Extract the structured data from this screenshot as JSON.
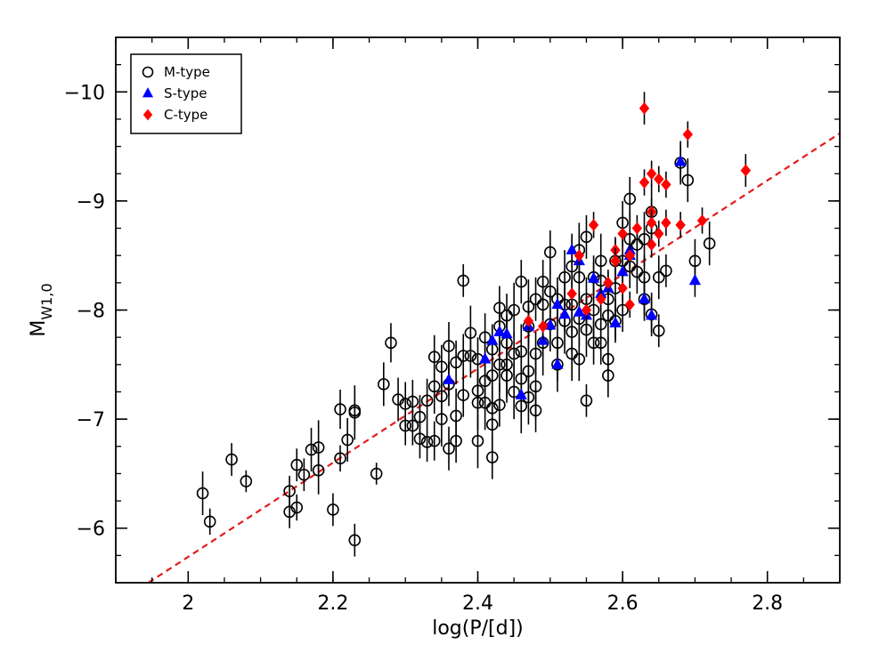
{
  "chart_data": {
    "type": "scatter",
    "xlabel": "log(P/[d])",
    "ylabel": "M",
    "ylabel_sub": "W1,0",
    "xlim": [
      1.9,
      2.9
    ],
    "ylim": [
      -5.5,
      -10.5
    ],
    "x_ticks": [
      2.0,
      2.2,
      2.4,
      2.6,
      2.8
    ],
    "x_tick_labels": [
      "2",
      "2.2",
      "2.4",
      "2.6",
      "2.8"
    ],
    "y_ticks": [
      -6,
      -7,
      -8,
      -9,
      -10
    ],
    "y_tick_labels": [
      "−6",
      "−7",
      "−8",
      "−9",
      "−10"
    ],
    "legend_position": "top-left",
    "fit_line": {
      "style": "dashed",
      "color": "#e41a1c",
      "points": [
        [
          1.945,
          -5.5
        ],
        [
          2.9,
          -9.62
        ]
      ]
    },
    "series": [
      {
        "name": "M-type",
        "marker": "open-circle",
        "color": "#000000",
        "points": [
          [
            2.02,
            -6.32,
            0.2
          ],
          [
            2.03,
            -6.06,
            0.12
          ],
          [
            2.06,
            -6.63,
            0.15
          ],
          [
            2.08,
            -6.43,
            0.1
          ],
          [
            2.14,
            -6.34,
            0.14
          ],
          [
            2.14,
            -6.15,
            0.15
          ],
          [
            2.15,
            -6.19,
            0.12
          ],
          [
            2.15,
            -6.58,
            0.15
          ],
          [
            2.16,
            -6.49,
            0.15
          ],
          [
            2.17,
            -6.72,
            0.2
          ],
          [
            2.18,
            -6.53,
            0.22
          ],
          [
            2.18,
            -6.74,
            0.25
          ],
          [
            2.2,
            -6.17,
            0.15
          ],
          [
            2.21,
            -6.64,
            0.12
          ],
          [
            2.21,
            -7.09,
            0.18
          ],
          [
            2.22,
            -6.81,
            0.2
          ],
          [
            2.23,
            -5.89,
            0.15
          ],
          [
            2.23,
            -7.08,
            0.18
          ],
          [
            2.23,
            -7.06,
            0.25
          ],
          [
            2.26,
            -6.5,
            0.1
          ],
          [
            2.27,
            -7.32,
            0.2
          ],
          [
            2.28,
            -7.7,
            0.18
          ],
          [
            2.29,
            -7.18,
            0.2
          ],
          [
            2.3,
            -6.94,
            0.18
          ],
          [
            2.3,
            -7.14,
            0.2
          ],
          [
            2.31,
            -6.94,
            0.18
          ],
          [
            2.31,
            -7.16,
            0.2
          ],
          [
            2.32,
            -6.82,
            0.18
          ],
          [
            2.32,
            -7.02,
            0.2
          ],
          [
            2.33,
            -7.17,
            0.2
          ],
          [
            2.33,
            -6.79,
            0.18
          ],
          [
            2.34,
            -6.8,
            0.18
          ],
          [
            2.34,
            -7.3,
            0.25
          ],
          [
            2.34,
            -7.57,
            0.2
          ],
          [
            2.35,
            -7.0,
            0.25
          ],
          [
            2.35,
            -7.21,
            0.2
          ],
          [
            2.35,
            -7.48,
            0.2
          ],
          [
            2.36,
            -6.73,
            0.2
          ],
          [
            2.36,
            -7.32,
            0.2
          ],
          [
            2.36,
            -7.67,
            0.22
          ],
          [
            2.37,
            -7.03,
            0.25
          ],
          [
            2.37,
            -7.52,
            0.2
          ],
          [
            2.37,
            -6.8,
            0.2
          ],
          [
            2.38,
            -7.22,
            0.2
          ],
          [
            2.38,
            -7.58,
            0.2
          ],
          [
            2.38,
            -8.27,
            0.15
          ],
          [
            2.39,
            -7.58,
            0.2
          ],
          [
            2.39,
            -7.79,
            0.25
          ],
          [
            2.4,
            -7.15,
            0.25
          ],
          [
            2.4,
            -7.26,
            0.2
          ],
          [
            2.4,
            -7.55,
            0.2
          ],
          [
            2.4,
            -6.8,
            0.25
          ],
          [
            2.41,
            -7.15,
            0.25
          ],
          [
            2.41,
            -7.35,
            0.2
          ],
          [
            2.41,
            -7.75,
            0.22
          ],
          [
            2.42,
            -6.95,
            0.25
          ],
          [
            2.42,
            -7.4,
            0.2
          ],
          [
            2.42,
            -7.64,
            0.2
          ],
          [
            2.42,
            -7.1,
            0.2
          ],
          [
            2.42,
            -6.65,
            0.2
          ],
          [
            2.43,
            -7.85,
            0.25
          ],
          [
            2.43,
            -8.02,
            0.2
          ],
          [
            2.43,
            -7.5,
            0.25
          ],
          [
            2.43,
            -7.13,
            0.2
          ],
          [
            2.44,
            -7.5,
            0.3
          ],
          [
            2.44,
            -7.95,
            0.2
          ],
          [
            2.44,
            -7.7,
            0.25
          ],
          [
            2.44,
            -7.4,
            0.25
          ],
          [
            2.45,
            -7.25,
            0.25
          ],
          [
            2.45,
            -7.6,
            0.2
          ],
          [
            2.45,
            -8.0,
            0.25
          ],
          [
            2.46,
            -7.37,
            0.2
          ],
          [
            2.46,
            -7.62,
            0.25
          ],
          [
            2.46,
            -8.26,
            0.2
          ],
          [
            2.46,
            -7.12,
            0.25
          ],
          [
            2.47,
            -7.44,
            0.3
          ],
          [
            2.47,
            -7.2,
            0.25
          ],
          [
            2.47,
            -7.85,
            0.2
          ],
          [
            2.47,
            -8.03,
            0.25
          ],
          [
            2.48,
            -7.08,
            0.2
          ],
          [
            2.48,
            -7.3,
            0.3
          ],
          [
            2.48,
            -7.6,
            0.2
          ],
          [
            2.48,
            -8.1,
            0.2
          ],
          [
            2.49,
            -7.7,
            0.3
          ],
          [
            2.49,
            -8.05,
            0.25
          ],
          [
            2.49,
            -8.26,
            0.2
          ],
          [
            2.5,
            -7.87,
            0.25
          ],
          [
            2.5,
            -8.17,
            0.2
          ],
          [
            2.5,
            -8.53,
            0.2
          ],
          [
            2.51,
            -7.7,
            0.25
          ],
          [
            2.51,
            -8.1,
            0.2
          ],
          [
            2.51,
            -7.5,
            0.25
          ],
          [
            2.52,
            -7.9,
            0.3
          ],
          [
            2.52,
            -8.3,
            0.25
          ],
          [
            2.52,
            -8.05,
            0.2
          ],
          [
            2.53,
            -7.6,
            0.25
          ],
          [
            2.53,
            -7.8,
            0.2
          ],
          [
            2.53,
            -8.05,
            0.25
          ],
          [
            2.53,
            -8.4,
            0.25
          ],
          [
            2.54,
            -7.92,
            0.25
          ],
          [
            2.54,
            -8.3,
            0.2
          ],
          [
            2.54,
            -8.55,
            0.25
          ],
          [
            2.54,
            -7.55,
            0.2
          ],
          [
            2.55,
            -7.17,
            0.15
          ],
          [
            2.55,
            -7.82,
            0.25
          ],
          [
            2.55,
            -8.1,
            0.2
          ],
          [
            2.55,
            -8.67,
            0.2
          ],
          [
            2.56,
            -7.7,
            0.2
          ],
          [
            2.56,
            -8.0,
            0.25
          ],
          [
            2.56,
            -8.3,
            0.2
          ],
          [
            2.57,
            -7.87,
            0.25
          ],
          [
            2.57,
            -8.27,
            0.2
          ],
          [
            2.57,
            -8.45,
            0.25
          ],
          [
            2.57,
            -7.7,
            0.2
          ],
          [
            2.58,
            -7.95,
            0.25
          ],
          [
            2.58,
            -8.1,
            0.2
          ],
          [
            2.58,
            -7.4,
            0.2
          ],
          [
            2.58,
            -7.55,
            0.2
          ],
          [
            2.59,
            -8.2,
            0.25
          ],
          [
            2.59,
            -7.9,
            0.2
          ],
          [
            2.59,
            -8.45,
            0.2
          ],
          [
            2.6,
            -8.45,
            0.2
          ],
          [
            2.6,
            -8.8,
            0.2
          ],
          [
            2.6,
            -8.0,
            0.2
          ],
          [
            2.61,
            -9.02,
            0.2
          ],
          [
            2.61,
            -8.4,
            0.2
          ],
          [
            2.61,
            -8.65,
            0.25
          ],
          [
            2.62,
            -8.35,
            0.2
          ],
          [
            2.62,
            -8.6,
            0.2
          ],
          [
            2.63,
            -8.1,
            0.2
          ],
          [
            2.63,
            -8.3,
            0.2
          ],
          [
            2.63,
            -8.65,
            0.25
          ],
          [
            2.64,
            -8.9,
            0.25
          ],
          [
            2.64,
            -8.75,
            0.2
          ],
          [
            2.64,
            -7.96,
            0.2
          ],
          [
            2.65,
            -8.3,
            0.2
          ],
          [
            2.65,
            -7.81,
            0.15
          ],
          [
            2.66,
            -8.36,
            0.15
          ],
          [
            2.68,
            -9.35,
            0.2
          ],
          [
            2.69,
            -9.19,
            0.2
          ],
          [
            2.7,
            -8.45,
            0.2
          ],
          [
            2.72,
            -8.61,
            0.2
          ]
        ]
      },
      {
        "name": "S-type",
        "marker": "filled-triangle",
        "color": "#0000ff",
        "points": [
          [
            2.36,
            -7.36,
            0.15
          ],
          [
            2.41,
            -7.55,
            0.15
          ],
          [
            2.42,
            -7.72,
            0.15
          ],
          [
            2.43,
            -7.8,
            0.15
          ],
          [
            2.44,
            -7.78,
            0.15
          ],
          [
            2.46,
            -7.22,
            0.15
          ],
          [
            2.47,
            -7.85,
            0.15
          ],
          [
            2.49,
            -7.72,
            0.15
          ],
          [
            2.5,
            -7.86,
            0.15
          ],
          [
            2.51,
            -7.5,
            0.15
          ],
          [
            2.51,
            -8.05,
            0.15
          ],
          [
            2.52,
            -7.96,
            0.15
          ],
          [
            2.53,
            -8.55,
            0.15
          ],
          [
            2.54,
            -8.45,
            0.15
          ],
          [
            2.54,
            -7.98,
            0.15
          ],
          [
            2.55,
            -7.95,
            0.15
          ],
          [
            2.56,
            -8.29,
            0.15
          ],
          [
            2.57,
            -8.15,
            0.15
          ],
          [
            2.58,
            -8.2,
            0.15
          ],
          [
            2.59,
            -7.88,
            0.15
          ],
          [
            2.6,
            -8.35,
            0.15
          ],
          [
            2.61,
            -8.5,
            0.15
          ],
          [
            2.61,
            -8.55,
            0.15
          ],
          [
            2.63,
            -8.1,
            0.15
          ],
          [
            2.64,
            -7.95,
            0.15
          ],
          [
            2.68,
            -9.36,
            0.15
          ],
          [
            2.7,
            -8.27,
            0.15
          ]
        ]
      },
      {
        "name": "C-type",
        "marker": "filled-diamond",
        "color": "#ff0000",
        "points": [
          [
            2.47,
            -7.9,
            0.12
          ],
          [
            2.49,
            -7.85,
            0.12
          ],
          [
            2.53,
            -8.15,
            0.12
          ],
          [
            2.54,
            -8.5,
            0.12
          ],
          [
            2.55,
            -8.0,
            0.12
          ],
          [
            2.56,
            -8.78,
            0.12
          ],
          [
            2.57,
            -8.1,
            0.12
          ],
          [
            2.58,
            -8.25,
            0.12
          ],
          [
            2.59,
            -8.55,
            0.12
          ],
          [
            2.59,
            -8.45,
            0.12
          ],
          [
            2.6,
            -8.2,
            0.12
          ],
          [
            2.6,
            -8.7,
            0.12
          ],
          [
            2.61,
            -8.05,
            0.12
          ],
          [
            2.61,
            -8.5,
            0.12
          ],
          [
            2.62,
            -8.75,
            0.12
          ],
          [
            2.63,
            -9.85,
            0.15
          ],
          [
            2.63,
            -9.17,
            0.12
          ],
          [
            2.64,
            -9.25,
            0.12
          ],
          [
            2.64,
            -8.9,
            0.12
          ],
          [
            2.64,
            -8.8,
            0.12
          ],
          [
            2.64,
            -8.6,
            0.12
          ],
          [
            2.65,
            -8.7,
            0.12
          ],
          [
            2.65,
            -9.2,
            0.12
          ],
          [
            2.66,
            -9.15,
            0.12
          ],
          [
            2.66,
            -8.8,
            0.12
          ],
          [
            2.68,
            -8.78,
            0.12
          ],
          [
            2.69,
            -9.61,
            0.12
          ],
          [
            2.71,
            -8.82,
            0.12
          ],
          [
            2.77,
            -9.28,
            0.15
          ]
        ]
      }
    ]
  }
}
